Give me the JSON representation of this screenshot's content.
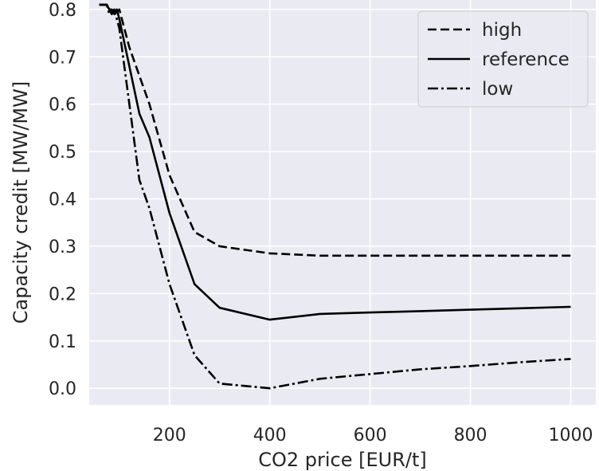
{
  "chart_data": {
    "type": "line",
    "xlabel": "CO2 price [EUR/t]",
    "ylabel": "Capacity credit [MW/MW]",
    "xlim": [
      40,
      1050
    ],
    "ylim": [
      -0.035,
      0.82
    ],
    "xticks": [
      200,
      400,
      600,
      800,
      1000
    ],
    "yticks": [
      0.0,
      0.1,
      0.2,
      0.3,
      0.4,
      0.5,
      0.6,
      0.7,
      0.8
    ],
    "xtick_labels": [
      "200",
      "400",
      "600",
      "800",
      "1000"
    ],
    "ytick_labels": [
      "0.0",
      "0.1",
      "0.2",
      "0.3",
      "0.4",
      "0.5",
      "0.6",
      "0.7",
      "0.8"
    ],
    "grid": true,
    "background": "#eaeaf2",
    "legend_position": "top-right",
    "series": [
      {
        "name": "high",
        "dash": "dashed",
        "points": [
          [
            60,
            0.81
          ],
          [
            75,
            0.81
          ],
          [
            85,
            0.79
          ],
          [
            90,
            0.8
          ],
          [
            95,
            0.795
          ],
          [
            100,
            0.8
          ],
          [
            120,
            0.72
          ],
          [
            140,
            0.66
          ],
          [
            160,
            0.6
          ],
          [
            200,
            0.45
          ],
          [
            250,
            0.33
          ],
          [
            300,
            0.3
          ],
          [
            400,
            0.285
          ],
          [
            500,
            0.28
          ],
          [
            600,
            0.28
          ],
          [
            700,
            0.28
          ],
          [
            800,
            0.28
          ],
          [
            900,
            0.28
          ],
          [
            1000,
            0.28
          ]
        ]
      },
      {
        "name": "reference",
        "dash": "solid",
        "points": [
          [
            60,
            0.81
          ],
          [
            75,
            0.81
          ],
          [
            80,
            0.8
          ],
          [
            85,
            0.8
          ],
          [
            90,
            0.79
          ],
          [
            95,
            0.8
          ],
          [
            100,
            0.78
          ],
          [
            120,
            0.68
          ],
          [
            140,
            0.58
          ],
          [
            160,
            0.53
          ],
          [
            200,
            0.37
          ],
          [
            250,
            0.22
          ],
          [
            300,
            0.17
          ],
          [
            400,
            0.145
          ],
          [
            500,
            0.157
          ],
          [
            600,
            0.16
          ],
          [
            700,
            0.163
          ],
          [
            800,
            0.166
          ],
          [
            900,
            0.169
          ],
          [
            1000,
            0.172
          ]
        ]
      },
      {
        "name": "low",
        "dash": "dashdot",
        "points": [
          [
            60,
            0.81
          ],
          [
            75,
            0.81
          ],
          [
            80,
            0.79
          ],
          [
            90,
            0.8
          ],
          [
            100,
            0.76
          ],
          [
            120,
            0.6
          ],
          [
            140,
            0.44
          ],
          [
            160,
            0.38
          ],
          [
            200,
            0.22
          ],
          [
            250,
            0.07
          ],
          [
            300,
            0.01
          ],
          [
            400,
            0.0
          ],
          [
            500,
            0.02
          ],
          [
            600,
            0.03
          ],
          [
            700,
            0.04
          ],
          [
            800,
            0.047
          ],
          [
            900,
            0.055
          ],
          [
            1000,
            0.062
          ]
        ]
      }
    ]
  }
}
